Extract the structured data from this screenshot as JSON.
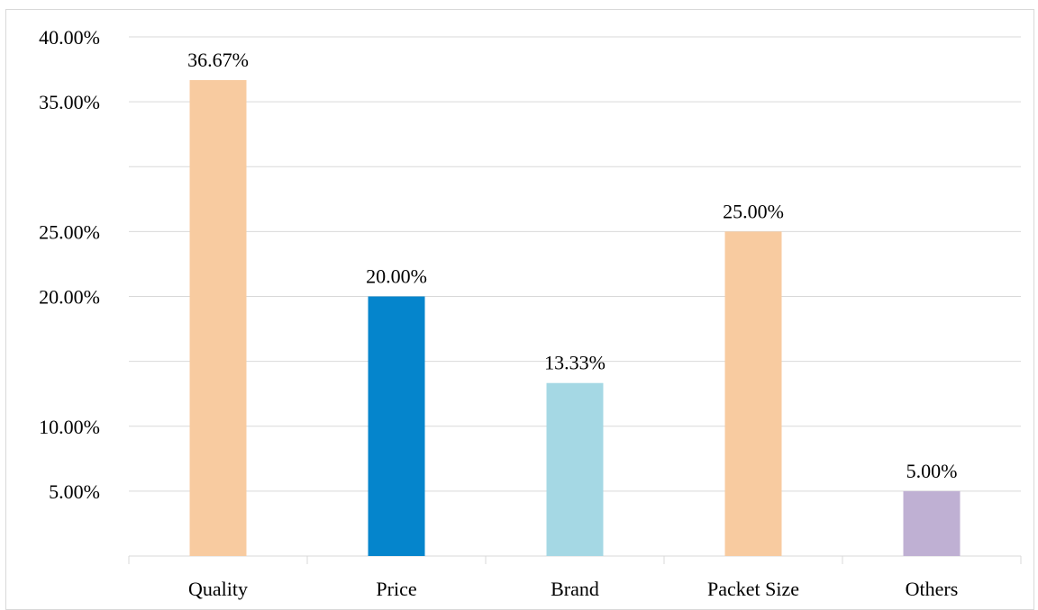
{
  "chart_data": {
    "type": "bar",
    "categories": [
      "Quality",
      "Price",
      "Brand",
      "Packet Size",
      "Others"
    ],
    "values": [
      36.67,
      20.0,
      13.33,
      25.0,
      5.0
    ],
    "data_labels": [
      "36.67%",
      "20.00%",
      "13.33%",
      "25.00%",
      "5.00%"
    ],
    "colors": [
      "#f8cba0",
      "#0585cc",
      "#a5d8e4",
      "#f8cba0",
      "#bfb0d3"
    ],
    "gridline_values": [
      5,
      10,
      15,
      20,
      25,
      30,
      35,
      40
    ],
    "y_tick_labels": [
      {
        "value": 5,
        "label": "5.00%"
      },
      {
        "value": 10,
        "label": "10.00%"
      },
      {
        "value": 20,
        "label": "20.00%"
      },
      {
        "value": 25,
        "label": "25.00%"
      },
      {
        "value": 35,
        "label": "35.00%"
      },
      {
        "value": 40,
        "label": "40.00%"
      }
    ],
    "ylim": [
      0,
      40
    ],
    "grid": true,
    "legend": "none",
    "title": "",
    "xlabel": "",
    "ylabel": ""
  }
}
